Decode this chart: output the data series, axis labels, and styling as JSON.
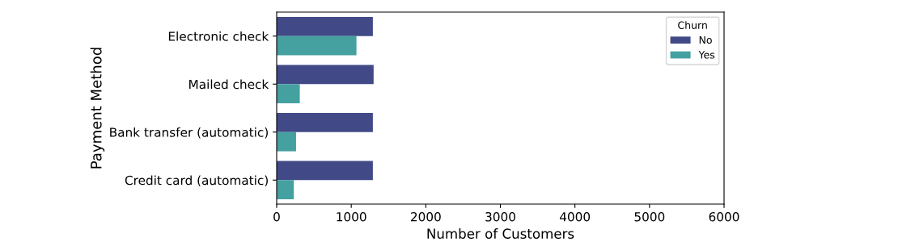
{
  "chart_data": {
    "type": "bar",
    "orientation": "horizontal",
    "xlabel": "Number of Customers",
    "ylabel": "Payment Method",
    "legend_title": "Churn",
    "legend": "top right",
    "grid": false,
    "categories": [
      "Electronic check",
      "Mailed check",
      "Bank transfer (automatic)",
      "Credit card (automatic)"
    ],
    "series": [
      {
        "name": "No",
        "color": "#414a87",
        "values": [
          1290,
          1300,
          1290,
          1290
        ]
      },
      {
        "name": "Yes",
        "color": "#45a0a0",
        "values": [
          1070,
          310,
          260,
          230
        ]
      }
    ],
    "xlim": [
      0,
      6000
    ],
    "xticks": [
      0,
      1000,
      2000,
      3000,
      4000,
      5000,
      6000
    ]
  }
}
